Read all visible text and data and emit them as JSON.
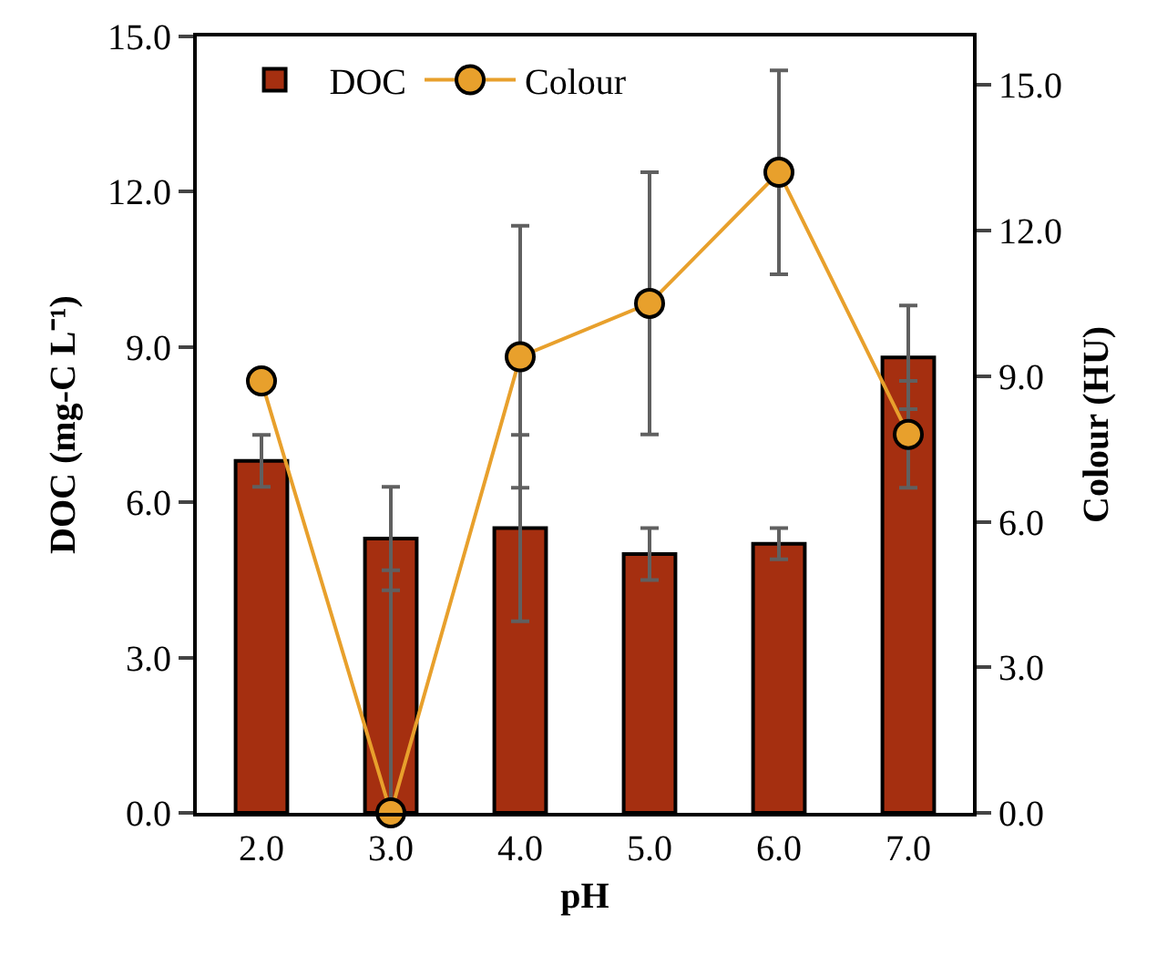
{
  "chart_data": {
    "type": "bar",
    "xlabel": "pH",
    "ylabel": "DOC (mg-C L⁻¹)",
    "y2label": "Colour (HU)",
    "categories": [
      "2.0",
      "3.0",
      "4.0",
      "5.0",
      "6.0",
      "7.0"
    ],
    "series": [
      {
        "name": "DOC",
        "color": "#a52f10",
        "values": [
          6.8,
          5.3,
          5.5,
          5.0,
          5.2,
          8.8
        ],
        "errors": [
          0.5,
          1.0,
          1.8,
          0.5,
          0.3,
          1.0
        ]
      },
      {
        "name": "Colour",
        "type": "line",
        "axis": "y2",
        "color": "#e8a02c",
        "marker": "circle",
        "values": [
          8.9,
          0,
          9.4,
          10.5,
          13.2,
          7.8
        ],
        "errors": [
          null,
          [
            0,
            5.0
          ],
          2.7,
          2.7,
          2.1,
          1.1
        ]
      }
    ],
    "ylim": [
      0,
      15
    ],
    "yticks": [
      {
        "value": 0,
        "label": "0.0"
      },
      {
        "value": 3,
        "label": "3.0"
      },
      {
        "value": 6,
        "label": "6.0"
      },
      {
        "value": 9,
        "label": "9.0"
      },
      {
        "value": 12,
        "label": "12.0"
      },
      {
        "value": 15,
        "label": "15.0"
      }
    ],
    "y2lim": [
      0,
      16
    ],
    "y2ticks": [
      {
        "value": 0,
        "label": "0.0"
      },
      {
        "value": 3,
        "label": "3.0"
      },
      {
        "value": 6,
        "label": "6.0"
      },
      {
        "value": 9,
        "label": "9.0"
      },
      {
        "value": 12,
        "label": "12.0"
      },
      {
        "value": 15,
        "label": "15.0"
      }
    ],
    "grid": false,
    "legend": "top left"
  }
}
